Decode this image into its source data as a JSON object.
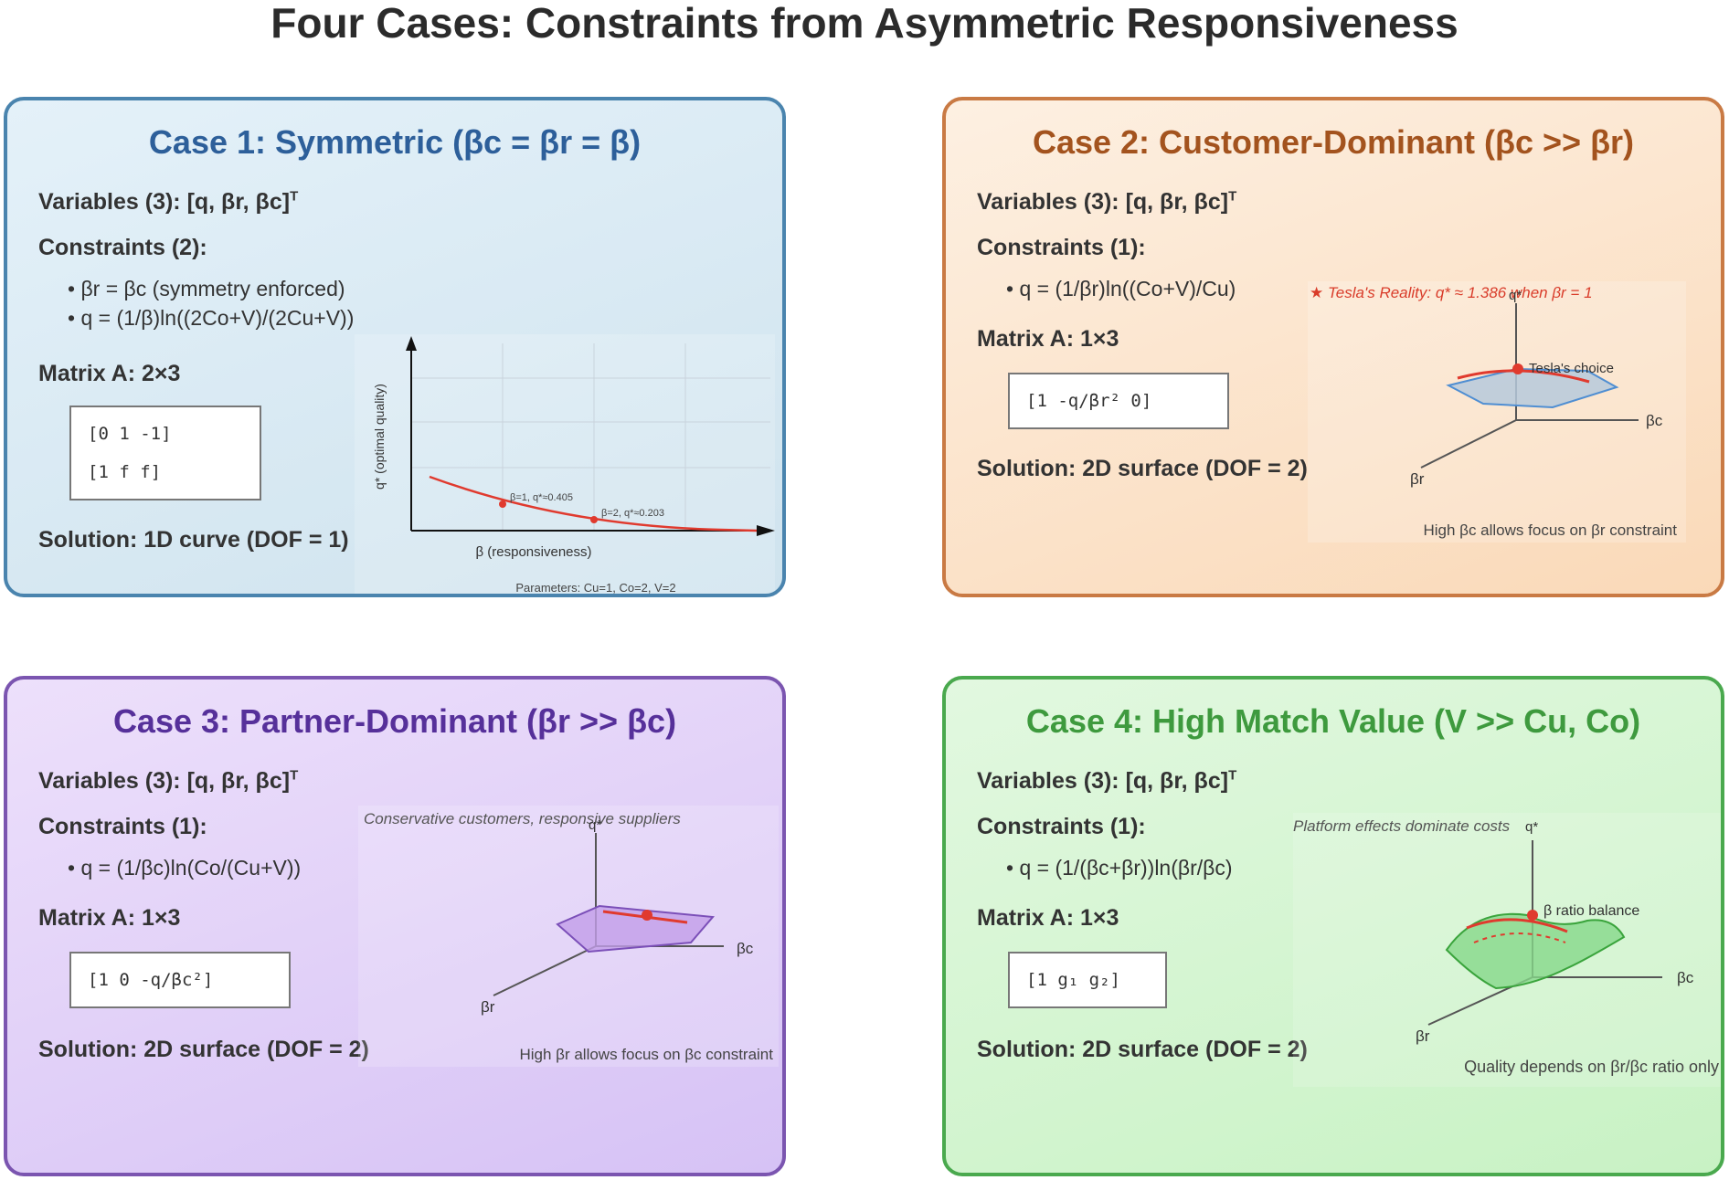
{
  "title": "Four Cases: Constraints from Asymmetric Responsiveness",
  "colors": {
    "case1": "#4a84ae",
    "case2": "#c97a44",
    "case3": "#7b55b0",
    "case4": "#4aa94e",
    "curve": "#e03a2e"
  },
  "cases": [
    {
      "title": "Case 1: Symmetric (βc = βr = β)",
      "variables": "Variables (3): [q, βr, βc]",
      "variables_sup": "T",
      "constraints_label": "Constraints (2):",
      "constraints": [
        "• βr = βc (symmetry enforced)",
        "• q = (1/β)ln((2Co+V)/(2Cu+V))"
      ],
      "matrix_label": "Matrix A: 2×3",
      "matrix_rows": [
        "[0 1 -1]",
        "[1 f f]"
      ],
      "solution": "Solution: 1D curve (DOF = 1)",
      "plot": {
        "ylabel": "q* (optimal quality)",
        "xlabel": "β (responsiveness)",
        "params": "Parameters: Cu=1, Co=2, V=2",
        "point1": "β=1, q*≈0.405",
        "point2": "β=2, q*≈0.203"
      }
    },
    {
      "title": "Case 2: Customer-Dominant (βc >> βr)",
      "variables": "Variables (3): [q, βr, βc]",
      "variables_sup": "T",
      "constraints_label": "Constraints (1):",
      "constraints": [
        "• q = (1/βr)ln((Co+V)/Cu)"
      ],
      "matrix_label": "Matrix A: 1×3",
      "matrix_rows": [
        "[1 -q/βr² 0]"
      ],
      "solution": "Solution: 2D surface (DOF = 2)",
      "plot": {
        "note": "★ Tesla's Reality: q* ≈ 1.386 when βr = 1",
        "axis_q": "q*",
        "axis_bc": "βc",
        "axis_br": "βr",
        "point_label": "Tesla's choice",
        "caption": "High βc allows focus on βr constraint"
      }
    },
    {
      "title": "Case 3: Partner-Dominant (βr >> βc)",
      "variables": "Variables (3): [q, βr, βc]",
      "variables_sup": "T",
      "constraints_label": "Constraints (1):",
      "constraints": [
        "• q = (1/βc)ln(Co/(Cu+V))"
      ],
      "matrix_label": "Matrix A: 1×3",
      "matrix_rows": [
        "[1 0 -q/βc²]"
      ],
      "solution": "Solution: 2D surface (DOF = 2)",
      "plot": {
        "note": "Conservative customers, responsive suppliers",
        "axis_q": "q*",
        "axis_bc": "βc",
        "axis_br": "βr",
        "caption": "High βr allows focus on βc constraint"
      }
    },
    {
      "title": "Case 4: High Match Value (V >> Cu, Co)",
      "variables": "Variables (3): [q, βr, βc]",
      "variables_sup": "T",
      "constraints_label": "Constraints (1):",
      "constraints": [
        "• q = (1/(βc+βr))ln(βr/βc)"
      ],
      "matrix_label": "Matrix A: 1×3",
      "matrix_rows": [
        "[1 g₁ g₂]"
      ],
      "solution": "Solution: 2D surface (DOF = 2)",
      "plot": {
        "note": "Platform effects dominate costs",
        "axis_q": "q*",
        "axis_bc": "βc",
        "axis_br": "βr",
        "point_label": "β ratio balance",
        "caption": "Quality depends on βr/βc ratio only"
      }
    }
  ]
}
